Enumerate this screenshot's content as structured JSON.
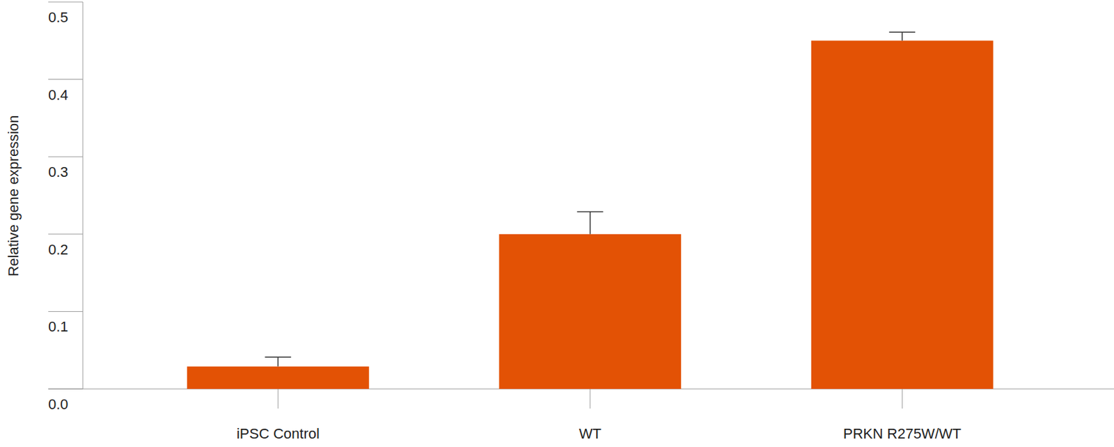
{
  "chart_data": {
    "type": "bar",
    "y_label": "Relative gene expression",
    "categories": [
      "iPSC Control",
      "WT",
      "PRKN R275W/WT"
    ],
    "values": [
      0.029,
      0.2,
      0.45
    ],
    "errors": [
      0.012,
      0.029,
      0.011
    ],
    "color": "#e35205",
    "ylim": [
      0,
      0.5
    ],
    "yticks": [
      {
        "value": 0,
        "label": "0.0"
      },
      0.1,
      0.2,
      0.3,
      0.4,
      0.5
    ],
    "grid": false
  }
}
